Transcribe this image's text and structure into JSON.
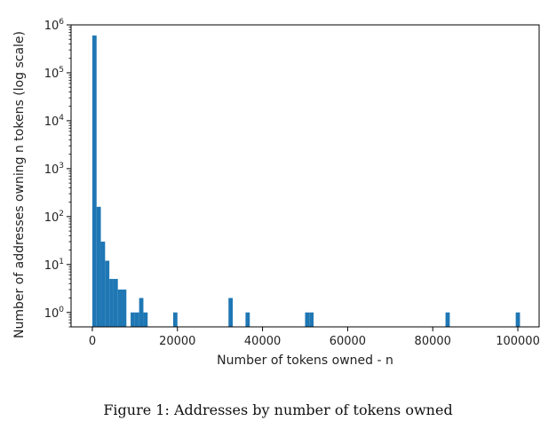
{
  "chart_data": {
    "type": "bar",
    "title": "",
    "xlabel": "Number of tokens owned - n",
    "ylabel": "Number of addresses owning n tokens (log scale)",
    "yscale": "log",
    "xlim": [
      -5000,
      105000
    ],
    "ylim": [
      0.5,
      1000000
    ],
    "bin_width": 1000,
    "bar_color": "#1f77b4",
    "x_ticks": [
      0,
      20000,
      40000,
      60000,
      80000,
      100000
    ],
    "x_tick_labels": [
      "0",
      "20000",
      "40000",
      "60000",
      "80000",
      "100000"
    ],
    "y_ticks": [
      1,
      10,
      100,
      1000,
      10000,
      100000,
      1000000
    ],
    "y_tick_labels": [
      {
        "base": "10",
        "exp": "0"
      },
      {
        "base": "10",
        "exp": "1"
      },
      {
        "base": "10",
        "exp": "2"
      },
      {
        "base": "10",
        "exp": "3"
      },
      {
        "base": "10",
        "exp": "4"
      },
      {
        "base": "10",
        "exp": "5"
      },
      {
        "base": "10",
        "exp": "6"
      }
    ],
    "bins": [
      {
        "x0": 0,
        "count": 600000
      },
      {
        "x0": 1000,
        "count": 160
      },
      {
        "x0": 2000,
        "count": 30
      },
      {
        "x0": 3000,
        "count": 12
      },
      {
        "x0": 4000,
        "count": 5
      },
      {
        "x0": 5000,
        "count": 5
      },
      {
        "x0": 6000,
        "count": 3
      },
      {
        "x0": 7000,
        "count": 3
      },
      {
        "x0": 9000,
        "count": 1
      },
      {
        "x0": 10000,
        "count": 1
      },
      {
        "x0": 11000,
        "count": 2
      },
      {
        "x0": 12000,
        "count": 1
      },
      {
        "x0": 19000,
        "count": 1
      },
      {
        "x0": 32000,
        "count": 2
      },
      {
        "x0": 36000,
        "count": 1
      },
      {
        "x0": 50000,
        "count": 1
      },
      {
        "x0": 51000,
        "count": 1
      },
      {
        "x0": 83000,
        "count": 1
      },
      {
        "x0": 99500,
        "count": 1
      }
    ]
  },
  "caption": "Figure 1: Addresses by number of tokens owned"
}
